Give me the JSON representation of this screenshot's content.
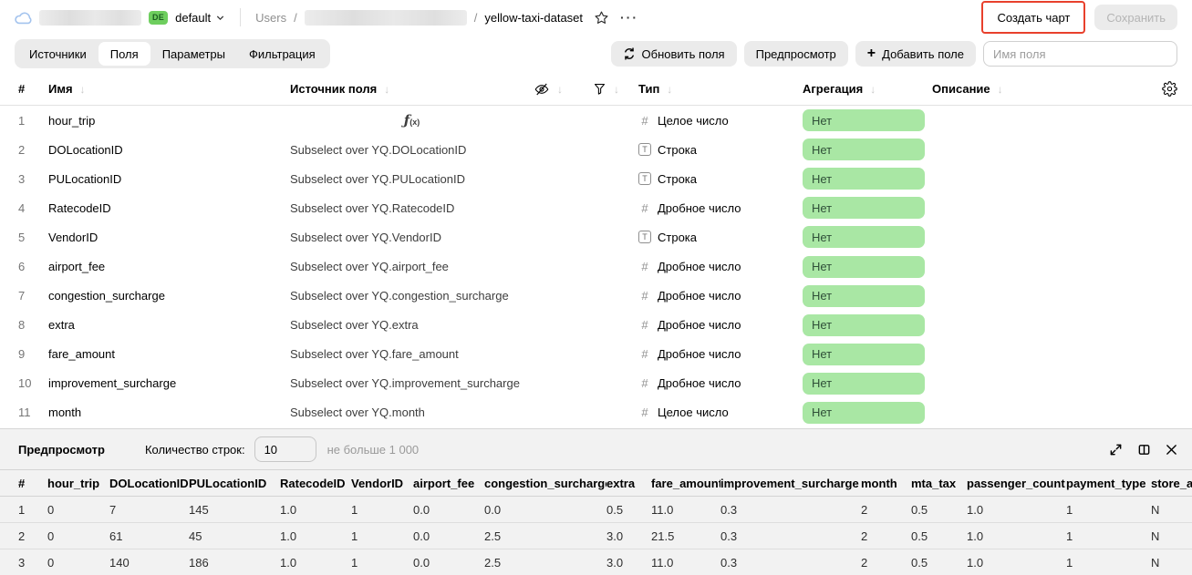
{
  "colors": {
    "aggregation_pill_bg": "#a9e7a4",
    "env_badge_bg": "#6ece5e",
    "annotation_red": "#e8402c"
  },
  "topbar": {
    "env_badge": "DE",
    "env_name": "default",
    "breadcrumb_root": "Users",
    "breadcrumb_separator": "/",
    "dataset_name": "yellow-taxi-dataset",
    "menu_dots": "···",
    "create_chart_label": "Создать чарт",
    "save_label": "Сохранить"
  },
  "toolbar": {
    "tabs": [
      {
        "id": "sources",
        "label": "Источники",
        "active": false
      },
      {
        "id": "fields",
        "label": "Поля",
        "active": true
      },
      {
        "id": "parameters",
        "label": "Параметры",
        "active": false
      },
      {
        "id": "filtering",
        "label": "Фильтрация",
        "active": false
      }
    ],
    "refresh_fields_label": "Обновить поля",
    "preview_label": "Предпросмотр",
    "add_field_plus": "+",
    "add_field_label": "Добавить поле",
    "field_name_placeholder": "Имя поля"
  },
  "icons": {
    "formula_f": "ƒ",
    "formula_args": "(x)",
    "number_glyph": "#",
    "string_glyph": "T",
    "sort_arrow": "↓"
  },
  "fields_table": {
    "headers": {
      "index": "#",
      "name": "Имя",
      "source": "Источник поля",
      "type": "Тип",
      "aggregation": "Агрегация",
      "description": "Описание"
    },
    "rows": [
      {
        "num": "1",
        "name": "hour_trip",
        "source": "",
        "formula": true,
        "type_kind": "integer",
        "type_label": "Целое число",
        "aggregation": "Нет",
        "description": ""
      },
      {
        "num": "2",
        "name": "DOLocationID",
        "source": "Subselect over YQ.DOLocationID",
        "formula": false,
        "type_kind": "string",
        "type_label": "Строка",
        "aggregation": "Нет",
        "description": ""
      },
      {
        "num": "3",
        "name": "PULocationID",
        "source": "Subselect over YQ.PULocationID",
        "formula": false,
        "type_kind": "string",
        "type_label": "Строка",
        "aggregation": "Нет",
        "description": ""
      },
      {
        "num": "4",
        "name": "RatecodeID",
        "source": "Subselect over YQ.RatecodeID",
        "formula": false,
        "type_kind": "float",
        "type_label": "Дробное число",
        "aggregation": "Нет",
        "description": ""
      },
      {
        "num": "5",
        "name": "VendorID",
        "source": "Subselect over YQ.VendorID",
        "formula": false,
        "type_kind": "string",
        "type_label": "Строка",
        "aggregation": "Нет",
        "description": ""
      },
      {
        "num": "6",
        "name": "airport_fee",
        "source": "Subselect over YQ.airport_fee",
        "formula": false,
        "type_kind": "float",
        "type_label": "Дробное число",
        "aggregation": "Нет",
        "description": ""
      },
      {
        "num": "7",
        "name": "congestion_surcharge",
        "source": "Subselect over YQ.congestion_surcharge",
        "formula": false,
        "type_kind": "float",
        "type_label": "Дробное число",
        "aggregation": "Нет",
        "description": ""
      },
      {
        "num": "8",
        "name": "extra",
        "source": "Subselect over YQ.extra",
        "formula": false,
        "type_kind": "float",
        "type_label": "Дробное число",
        "aggregation": "Нет",
        "description": ""
      },
      {
        "num": "9",
        "name": "fare_amount",
        "source": "Subselect over YQ.fare_amount",
        "formula": false,
        "type_kind": "float",
        "type_label": "Дробное число",
        "aggregation": "Нет",
        "description": ""
      },
      {
        "num": "10",
        "name": "improvement_surcharge",
        "source": "Subselect over YQ.improvement_surcharge",
        "formula": false,
        "type_kind": "float",
        "type_label": "Дробное число",
        "aggregation": "Нет",
        "description": ""
      },
      {
        "num": "11",
        "name": "month",
        "source": "Subselect over YQ.month",
        "formula": false,
        "type_kind": "integer",
        "type_label": "Целое число",
        "aggregation": "Нет",
        "description": ""
      }
    ]
  },
  "preview": {
    "title": "Предпросмотр",
    "row_count_label": "Количество строк:",
    "row_count_value": "10",
    "row_count_hint": "не больше 1 000",
    "table": {
      "columns": [
        "#",
        "hour_trip",
        "DOLocationID",
        "PULocationID",
        "RatecodeID",
        "VendorID",
        "airport_fee",
        "congestion_surcharge",
        "extra",
        "fare_amount",
        "improvement_surcharge",
        "month",
        "mta_tax",
        "passenger_count",
        "payment_type",
        "store_an"
      ],
      "rows": [
        [
          "1",
          "0",
          "7",
          "145",
          "1.0",
          "1",
          "0.0",
          "0.0",
          "0.5",
          "11.0",
          "0.3",
          "2",
          "0.5",
          "1.0",
          "1",
          "N"
        ],
        [
          "2",
          "0",
          "61",
          "45",
          "1.0",
          "1",
          "0.0",
          "2.5",
          "3.0",
          "21.5",
          "0.3",
          "2",
          "0.5",
          "1.0",
          "1",
          "N"
        ],
        [
          "3",
          "0",
          "140",
          "186",
          "1.0",
          "1",
          "0.0",
          "2.5",
          "3.0",
          "11.0",
          "0.3",
          "2",
          "0.5",
          "1.0",
          "1",
          "N"
        ]
      ]
    }
  }
}
